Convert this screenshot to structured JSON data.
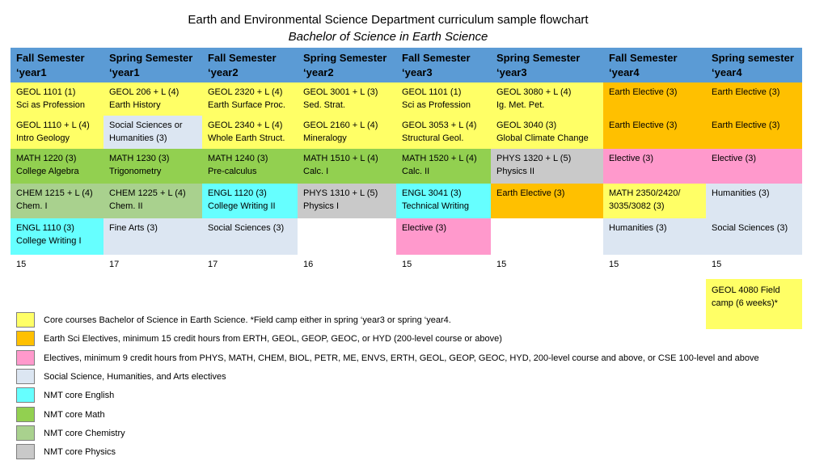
{
  "header": {
    "title": "Earth and Environmental Science Department curriculum sample flowchart",
    "subtitle": "Bachelor of Science in Earth Science"
  },
  "colors": {
    "core": "#ffff66",
    "earth_elective": "#ffc000",
    "elective": "#ff99cc",
    "social": "#dce6f2",
    "english": "#66ffff",
    "math": "#92d050",
    "chemistry": "#a9d18e",
    "physics": "#c9c9c9",
    "header": "#5b9bd5"
  },
  "columns": [
    {
      "label": "Fall Semester\n‘year1",
      "total": "15"
    },
    {
      "label": "Spring Semester\n‘year1",
      "total": "17"
    },
    {
      "label": "Fall Semester\n‘year2",
      "total": "17"
    },
    {
      "label": "Spring Semester\n‘year2",
      "total": "16"
    },
    {
      "label": "Fall Semester\n‘year3",
      "total": "15"
    },
    {
      "label": "Spring Semester\n‘year3",
      "total": "15"
    },
    {
      "label": "Fall Semester\n‘year4",
      "total": "15"
    },
    {
      "label": "Spring semester\n‘year4",
      "total": "15"
    }
  ],
  "rows": [
    [
      {
        "text": "GEOL 1101 (1)\nSci as Profession",
        "type": "core"
      },
      {
        "text": "GEOL 206 + L (4)\nEarth History",
        "type": "core"
      },
      {
        "text": "GEOL 2320 + L (4)\nEarth Surface Proc.",
        "type": "core"
      },
      {
        "text": "GEOL 3001 + L (3)\nSed. Strat.",
        "type": "core"
      },
      {
        "text": "GEOL 1101 (1)\nSci as Profession",
        "type": "core"
      },
      {
        "text": "GEOL 3080 + L (4)\nIg. Met. Pet.",
        "type": "core"
      },
      {
        "text": "Earth Elective (3)",
        "type": "earth_elective"
      },
      {
        "text": "Earth Elective (3)",
        "type": "earth_elective"
      }
    ],
    [
      {
        "text": "GEOL 1110 + L (4)\nIntro Geology",
        "type": "core"
      },
      {
        "text": "Social Sciences or\nHumanities (3)",
        "type": "social"
      },
      {
        "text": "GEOL 2340 + L (4)\nWhole Earth Struct.",
        "type": "core"
      },
      {
        "text": "GEOL 2160 + L (4)\nMineralogy",
        "type": "core"
      },
      {
        "text": "GEOL 3053 + L (4)\nStructural Geol.",
        "type": "core"
      },
      {
        "text": "GEOL 3040  (3)\nGlobal Climate Change",
        "type": "core"
      },
      {
        "text": "Earth Elective (3)",
        "type": "earth_elective"
      },
      {
        "text": "Earth Elective (3)",
        "type": "earth_elective"
      }
    ],
    [
      {
        "text": "MATH 1220 (3)\nCollege Algebra",
        "type": "math"
      },
      {
        "text": "MATH 1230 (3)\nTrigonometry",
        "type": "math"
      },
      {
        "text": "MATH 1240 (3)\nPre-calculus",
        "type": "math"
      },
      {
        "text": "MATH 1510 + L (4)\nCalc. I",
        "type": "math"
      },
      {
        "text": "MATH 1520 + L (4)\nCalc. II",
        "type": "math"
      },
      {
        "text": "PHYS 1320 + L  (5)\nPhysics II",
        "type": "physics"
      },
      {
        "text": "Elective (3)",
        "type": "elective"
      },
      {
        "text": "Elective (3)",
        "type": "elective"
      }
    ],
    [
      {
        "text": "CHEM 1215 + L (4)\nChem. I",
        "type": "chemistry"
      },
      {
        "text": "CHEM 1225 + L (4)\nChem. II",
        "type": "chemistry"
      },
      {
        "text": "ENGL 1120 (3)\nCollege Writing II",
        "type": "english"
      },
      {
        "text": "PHYS 1310 + L (5)\nPhysics I",
        "type": "physics"
      },
      {
        "text": "ENGL 3041 (3)\nTechnical Writing",
        "type": "english"
      },
      {
        "text": "Earth Elective (3)",
        "type": "earth_elective"
      },
      {
        "text": "MATH 2350/2420/\n3035/3082 (3)",
        "type": "core"
      },
      {
        "text": "Humanities (3)",
        "type": "social"
      }
    ],
    [
      {
        "text": "ENGL 1110 (3)\nCollege Writing I",
        "type": "english"
      },
      {
        "text": "Fine Arts (3)",
        "type": "social"
      },
      {
        "text": "Social Sciences (3)",
        "type": "social"
      },
      {
        "text": "",
        "type": "none"
      },
      {
        "text": "Elective (3)",
        "type": "elective"
      },
      {
        "text": "",
        "type": "none"
      },
      {
        "text": "Humanities (3)",
        "type": "social"
      },
      {
        "text": "Social Sciences (3)",
        "type": "social"
      }
    ]
  ],
  "field_camp": {
    "text": "GEOL 4080 Field\ncamp (6 weeks)*",
    "type": "core"
  },
  "legend": [
    {
      "type": "core",
      "text": "Core courses Bachelor of Science in Earth Science. *Field camp either in spring ‘year3 or spring ‘year4."
    },
    {
      "type": "earth_elective",
      "text": "Earth Sci Electives, minimum 15 credit hours from ERTH, GEOL, GEOP, GEOC, or HYD (200-level course or above)"
    },
    {
      "type": "elective",
      "text": "Electives, minimum 9 credit hours from PHYS, MATH, CHEM, BIOL, PETR, ME, ENVS, ERTH, GEOL, GEOP, GEOC, HYD, 200-level course and above, or CSE 100-level and above"
    },
    {
      "type": "social",
      "text": "Social Science, Humanities, and Arts electives"
    },
    {
      "type": "english",
      "text": "NMT core English"
    },
    {
      "type": "math",
      "text": "NMT core Math"
    },
    {
      "type": "chemistry",
      "text": "NMT core Chemistry"
    },
    {
      "type": "physics",
      "text": "NMT core Physics"
    }
  ]
}
